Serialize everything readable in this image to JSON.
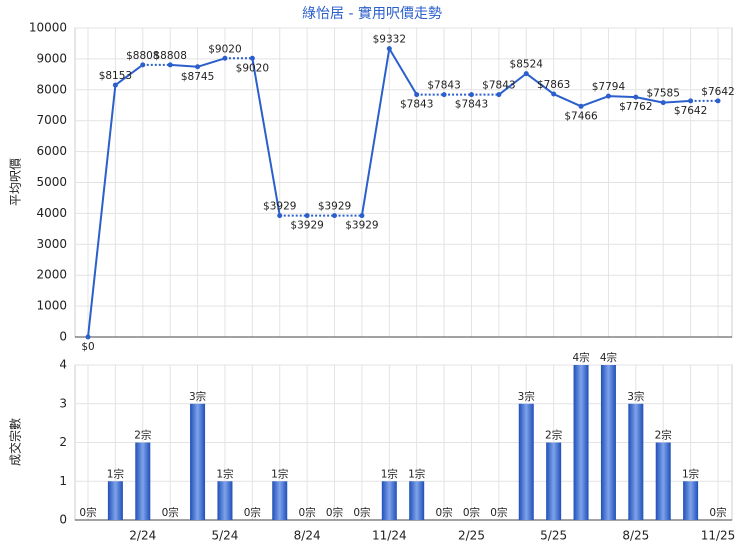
{
  "chart_data": [
    {
      "type": "line",
      "title": "綠怡居 - 實用呎價走勢",
      "y_label": "平均呎價",
      "color": "#2b5fcc",
      "values": [
        0,
        8153,
        8808,
        8808,
        8745,
        9020,
        9020,
        3929,
        3929,
        3929,
        3929,
        9332,
        7843,
        7843,
        7843,
        7843,
        8524,
        7863,
        7466,
        7794,
        7762,
        7585,
        7642,
        7642
      ],
      "value_labels": [
        "$0",
        "$8153",
        "$8808",
        "$8808",
        "$8745",
        "$9020",
        "$9020",
        "$3929",
        "$3929",
        "$3929",
        "$3929",
        "$9332",
        "$7843",
        "$7843",
        "$7843",
        "$7843",
        "$8524",
        "$7863",
        "$7466",
        "$7794",
        "$7762",
        "$7585",
        "$7642",
        "$7642"
      ],
      "ylim": [
        0,
        10000
      ],
      "yticks": [
        0,
        1000,
        2000,
        3000,
        4000,
        5000,
        6000,
        7000,
        8000,
        9000,
        10000
      ],
      "grid": true
    },
    {
      "type": "bar",
      "y_label": "成交宗數",
      "color": "#3a6bd4",
      "categories": [
        null,
        null,
        "2/24",
        null,
        null,
        "5/24",
        null,
        null,
        "8/24",
        null,
        null,
        "11/24",
        null,
        null,
        "2/25",
        null,
        null,
        "5/25",
        null,
        null,
        "8/25",
        null,
        null,
        "11/25"
      ],
      "values": [
        0,
        1,
        2,
        0,
        3,
        1,
        0,
        1,
        0,
        0,
        0,
        1,
        1,
        0,
        0,
        0,
        3,
        2,
        4,
        4,
        3,
        2,
        1,
        0
      ],
      "value_labels": [
        "0宗",
        "1宗",
        "2宗",
        "0宗",
        "3宗",
        "1宗",
        "0宗",
        "1宗",
        "0宗",
        "0宗",
        "0宗",
        "1宗",
        "1宗",
        "0宗",
        "0宗",
        "0宗",
        "3宗",
        "2宗",
        "4宗",
        "4宗",
        "3宗",
        "2宗",
        "1宗",
        "0宗"
      ],
      "ylim": [
        0,
        4
      ],
      "yticks": [
        0,
        1,
        2,
        3,
        4
      ],
      "grid": true
    }
  ]
}
